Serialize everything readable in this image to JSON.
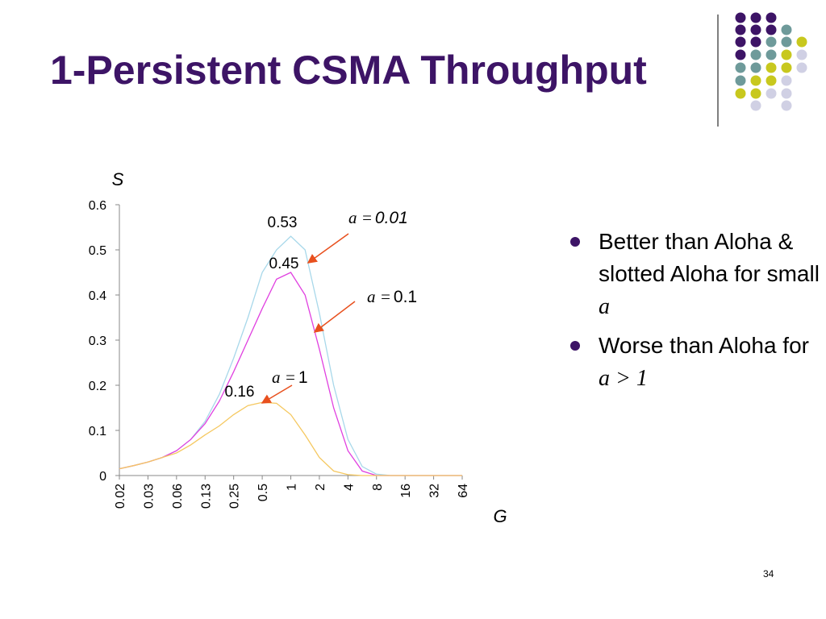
{
  "title": "1-Persistent CSMA Throughput",
  "bullets": [
    {
      "text": "Better than Aloha & slotted Aloha for small ",
      "italic": "a"
    },
    {
      "text": "Worse than Aloha for ",
      "italic": "a > 1"
    }
  ],
  "slide_number": "34",
  "chart_data": {
    "type": "line",
    "y_label": "S",
    "x_label": "G",
    "categories": [
      "0.02",
      null,
      "0.03",
      null,
      "0.06",
      null,
      "0.13",
      null,
      "0.25",
      null,
      "0.5",
      null,
      "1",
      null,
      "2",
      null,
      "4",
      null,
      "8",
      null,
      "16",
      null,
      "32",
      null,
      "64"
    ],
    "ylim": [
      0,
      0.6
    ],
    "yticks": [
      0,
      0.1,
      0.2,
      0.3,
      0.4,
      0.5,
      0.6
    ],
    "series": [
      {
        "color": "#a8d8ea",
        "values": [
          0.015,
          0.022,
          0.03,
          0.04,
          0.055,
          0.08,
          0.12,
          0.18,
          0.26,
          0.35,
          0.45,
          0.5,
          0.53,
          0.5,
          0.36,
          0.2,
          0.08,
          0.02,
          0.003,
          0,
          0,
          0,
          0,
          0,
          0
        ]
      },
      {
        "color": "#e040e0",
        "values": [
          0.015,
          0.022,
          0.03,
          0.04,
          0.055,
          0.08,
          0.115,
          0.165,
          0.23,
          0.3,
          0.37,
          0.435,
          0.45,
          0.4,
          0.28,
          0.15,
          0.055,
          0.01,
          0,
          0,
          0,
          0,
          0,
          0,
          0
        ]
      },
      {
        "color": "#f5c860",
        "values": [
          0.015,
          0.022,
          0.03,
          0.04,
          0.05,
          0.068,
          0.09,
          0.11,
          0.135,
          0.155,
          0.162,
          0.16,
          0.135,
          0.09,
          0.04,
          0.01,
          0.002,
          0,
          0,
          0,
          0,
          0,
          0,
          0,
          0
        ]
      }
    ],
    "peak_labels": [
      "0.53",
      "0.45",
      "0.16"
    ],
    "annotations": [
      {
        "symbol": "a =",
        "value": "0.01"
      },
      {
        "symbol": "a =",
        "value": "0.1"
      },
      {
        "symbol": "a =",
        "value": "1"
      }
    ]
  }
}
